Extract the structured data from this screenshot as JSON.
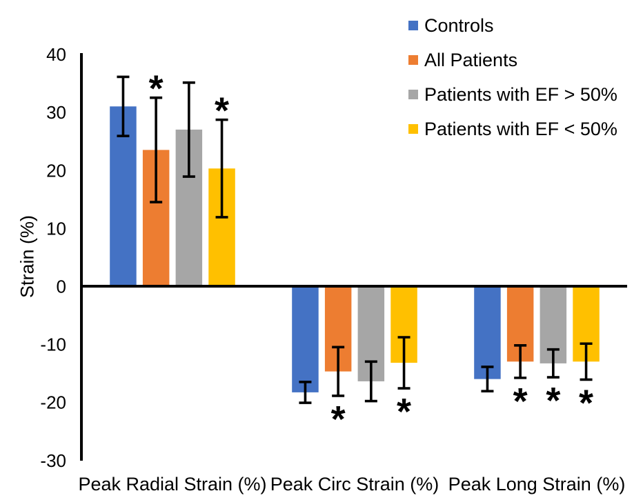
{
  "chart_data": {
    "type": "bar",
    "title": "",
    "ylabel": "Strain (%)",
    "ylim": [
      -30,
      40
    ],
    "yticks": [
      40,
      30,
      20,
      10,
      0,
      -10,
      -20,
      -30
    ],
    "categories": [
      "Peak Radial Strain (%)",
      "Peak Circ Strain (%)",
      "Peak Long Strain (%)"
    ],
    "series": [
      {
        "name": "Controls",
        "color": "#4472C4",
        "values": [
          31.0,
          -18.3,
          -16.0
        ],
        "error_sd": [
          5.1,
          1.8,
          2.1
        ],
        "significant": [
          false,
          false,
          false
        ]
      },
      {
        "name": "All Patients",
        "color": "#ED7D31",
        "values": [
          23.5,
          -14.7,
          -13.0
        ],
        "error_sd": [
          9.0,
          4.2,
          2.8
        ],
        "significant": [
          true,
          true,
          true
        ]
      },
      {
        "name": "Patients with EF > 50%",
        "color": "#A6A6A6",
        "values": [
          27.0,
          -16.4,
          -13.3
        ],
        "error_sd": [
          8.1,
          3.4,
          2.4
        ],
        "significant": [
          false,
          false,
          true
        ]
      },
      {
        "name": "Patients with EF < 50%",
        "color": "#FFC000",
        "values": [
          20.3,
          -13.2,
          -13.0
        ],
        "error_sd": [
          8.4,
          4.4,
          3.1
        ],
        "significant": [
          true,
          true,
          true
        ]
      }
    ],
    "significance_marker": "*",
    "legend_position": "top-right",
    "grid": false,
    "axis_color": "#000000",
    "error_bar_color": "#000000"
  }
}
